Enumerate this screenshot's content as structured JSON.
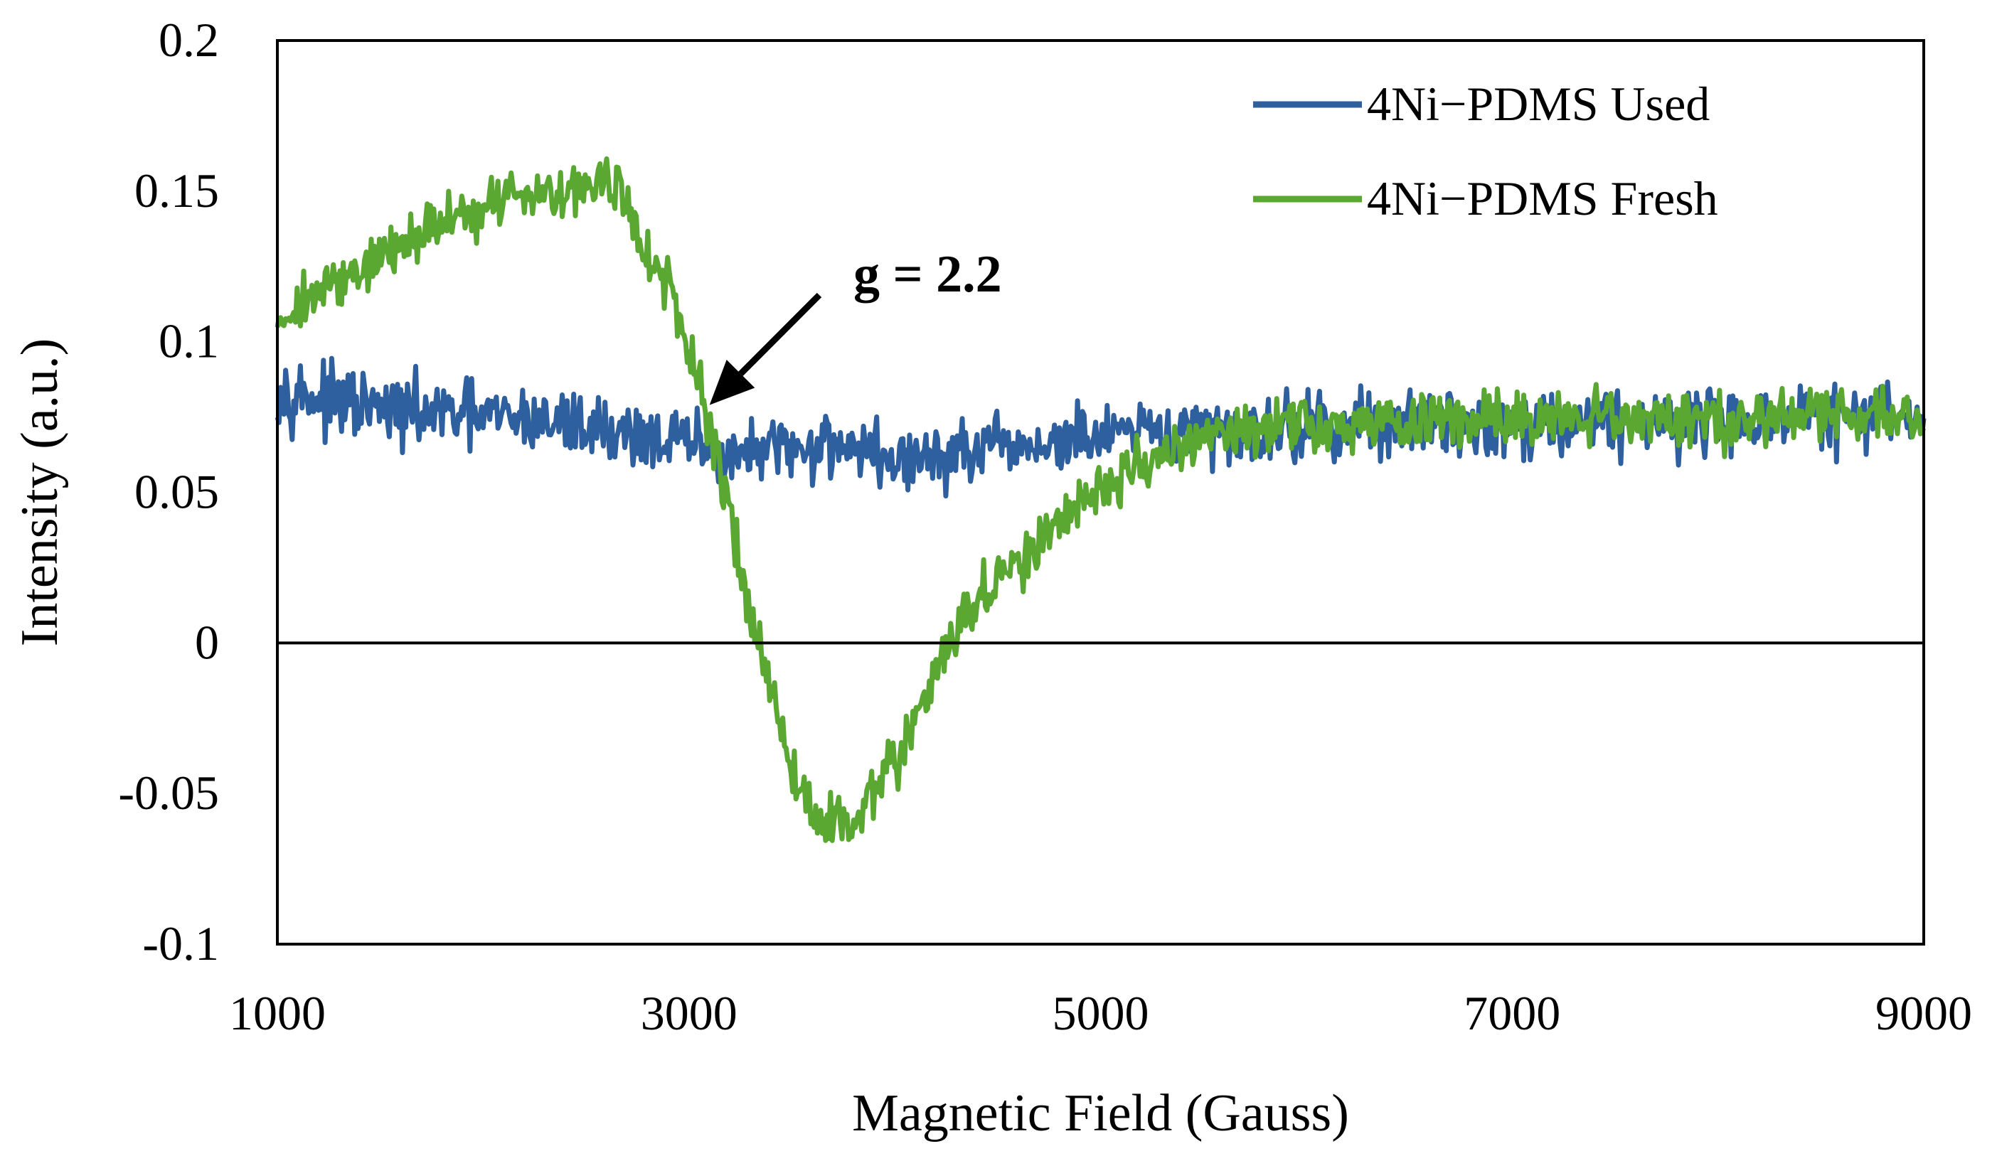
{
  "chart_data": {
    "type": "line",
    "title": "",
    "xlabel": "Magnetic Field (Gauss)",
    "ylabel": "Intensity (a.u.)",
    "xlim": [
      1000,
      9000
    ],
    "ylim": [
      -0.1,
      0.2
    ],
    "x_ticks": [
      1000,
      3000,
      5000,
      7000,
      9000
    ],
    "y_ticks": [
      -0.1,
      -0.05,
      0,
      0.05,
      0.1,
      0.15,
      0.2
    ],
    "x_tick_labels": [
      "1000",
      "3000",
      "5000",
      "7000",
      "9000"
    ],
    "y_tick_labels": [
      "-0.1",
      "-0.05",
      "0",
      "0.05",
      "0.1",
      "0.15",
      "0.2"
    ],
    "grid": false,
    "zero_line": true,
    "legend_position": "top-right",
    "series": [
      {
        "name": "4Ni−PDMS Used",
        "color": "#2E5F9E",
        "x": [
          1000,
          1250,
          1500,
          1750,
          2000,
          2250,
          2500,
          2750,
          3000,
          3250,
          3500,
          3750,
          4000,
          4250,
          4500,
          4750,
          5000,
          5250,
          5500,
          5750,
          6000,
          6500,
          7000,
          7500,
          8000,
          8500,
          9000
        ],
        "y": [
          0.085,
          0.08,
          0.077,
          0.076,
          0.075,
          0.074,
          0.072,
          0.069,
          0.066,
          0.062,
          0.064,
          0.067,
          0.06,
          0.062,
          0.064,
          0.066,
          0.068,
          0.069,
          0.07,
          0.071,
          0.072,
          0.073,
          0.073,
          0.074,
          0.074,
          0.075,
          0.075
        ]
      },
      {
        "name": "4Ni−PDMS Fresh",
        "color": "#5AA832",
        "x": [
          1000,
          1250,
          1500,
          1750,
          2000,
          2250,
          2500,
          2650,
          2750,
          2900,
          3000,
          3100,
          3200,
          3300,
          3400,
          3500,
          3650,
          3800,
          4000,
          4100,
          4200,
          4300,
          4400,
          4600,
          4800,
          5000,
          5200,
          5500,
          6000,
          6500,
          7000,
          7500,
          8000,
          8500,
          9000
        ],
        "y": [
          0.108,
          0.118,
          0.128,
          0.138,
          0.145,
          0.15,
          0.152,
          0.153,
          0.135,
          0.118,
          0.095,
          0.07,
          0.045,
          0.01,
          -0.015,
          -0.045,
          -0.06,
          -0.058,
          -0.04,
          -0.025,
          -0.01,
          0.005,
          0.015,
          0.025,
          0.04,
          0.052,
          0.06,
          0.068,
          0.072,
          0.073,
          0.074,
          0.074,
          0.075,
          0.075,
          0.075
        ]
      }
    ],
    "annotations": [
      {
        "text": "g = 2.2",
        "arrow_to": {
          "x": 3100,
          "y": 0.079
        }
      }
    ]
  }
}
